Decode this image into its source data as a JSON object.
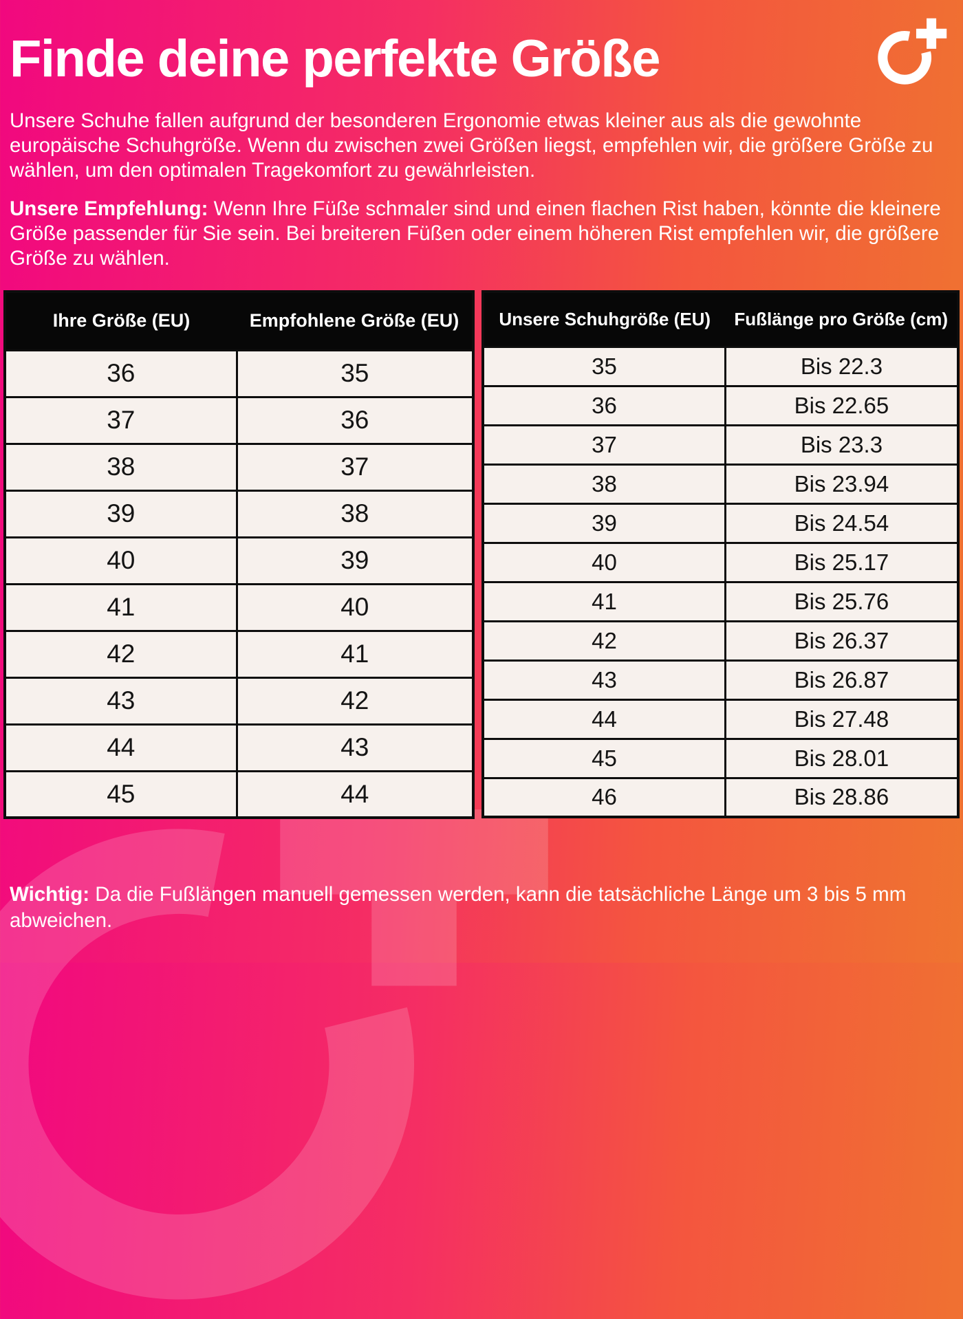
{
  "header": {
    "title": "Finde deine perfekte Größe"
  },
  "intro": {
    "text": "Unsere Schuhe fallen aufgrund der besonderen Ergonomie etwas kleiner aus als die gewohnte europäische Schuhgröße. Wenn du zwischen zwei Größen liegst, empfehlen wir, die größere Größe zu wählen, um den optimalen Tragekomfort zu gewährleisten."
  },
  "recommendation": {
    "lead": "Unsere Empfehlung:",
    "text": " Wenn Ihre Füße schmaler sind und einen flachen Rist haben, könnte die kleinere Größe passender für Sie sein. Bei breiteren Füßen oder einem höheren Rist empfehlen wir, die größere Größe zu wählen."
  },
  "tables": {
    "size_recommendation": {
      "headers": [
        "Ihre Größe (EU)",
        "Empfohlene Größe (EU)"
      ],
      "rows": [
        [
          "36",
          "35"
        ],
        [
          "37",
          "36"
        ],
        [
          "38",
          "37"
        ],
        [
          "39",
          "38"
        ],
        [
          "40",
          "39"
        ],
        [
          "41",
          "40"
        ],
        [
          "42",
          "41"
        ],
        [
          "43",
          "42"
        ],
        [
          "44",
          "43"
        ],
        [
          "45",
          "44"
        ]
      ]
    },
    "foot_length": {
      "headers": [
        "Unsere Schuhgröße (EU)",
        "Fußlänge pro Größe (cm)"
      ],
      "rows": [
        [
          "35",
          "Bis 22.3"
        ],
        [
          "36",
          "Bis 22.65"
        ],
        [
          "37",
          "Bis 23.3"
        ],
        [
          "38",
          "Bis 23.94"
        ],
        [
          "39",
          "Bis 24.54"
        ],
        [
          "40",
          "Bis 25.17"
        ],
        [
          "41",
          "Bis 25.76"
        ],
        [
          "42",
          "Bis 26.37"
        ],
        [
          "43",
          "Bis 26.87"
        ],
        [
          "44",
          "Bis 27.48"
        ],
        [
          "45",
          "Bis 28.01"
        ],
        [
          "46",
          "Bis 28.86"
        ]
      ]
    }
  },
  "footer": {
    "lead": "Wichtig:",
    "text": " Da die Fußlängen manuell gemessen werden, kann die tatsächliche Länge um 3 bis 5 mm abweichen."
  },
  "colors": {
    "gradient_start": "#f1087f",
    "gradient_mid": "#f4553f",
    "gradient_end": "#ef7430",
    "table_header_bg": "#070707",
    "table_cell_bg": "#f7f1ed",
    "text_on_gradient": "#ffffff",
    "table_text": "#141414"
  }
}
